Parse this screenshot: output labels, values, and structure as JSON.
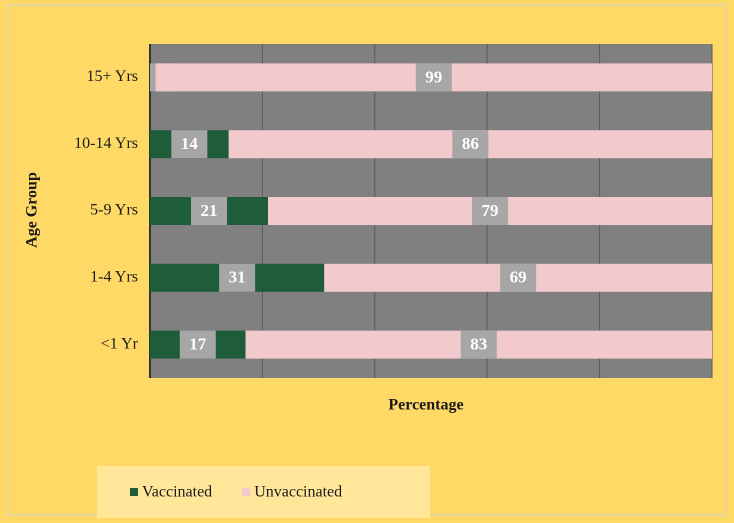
{
  "chart_data": {
    "type": "stacked-barh",
    "y_label": "Age Group",
    "x_label": "Percentage",
    "categories": [
      "<1 Yr",
      "1-4 Yrs",
      "5-9 Yrs",
      "10-14 Yrs",
      "15+ Yrs"
    ],
    "series": [
      {
        "name": "Vaccinated",
        "color": "#1f5c3a",
        "values": [
          17,
          31,
          21,
          14,
          1
        ]
      },
      {
        "name": "Unvaccinated",
        "color": "#f2c9cd",
        "values": [
          83,
          69,
          79,
          86,
          99
        ]
      }
    ],
    "xlim": [
      0,
      100
    ],
    "xticks": [
      0,
      20,
      40,
      60,
      80,
      100
    ],
    "grid": true
  }
}
